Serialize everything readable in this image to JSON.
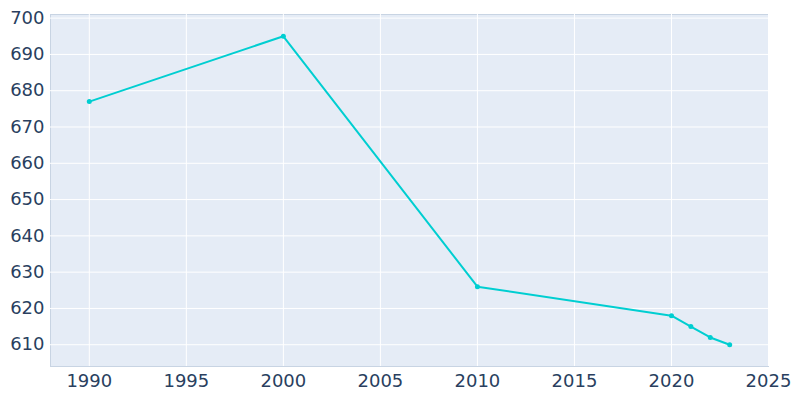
{
  "chart_data": {
    "type": "line",
    "x": [
      1990,
      2000,
      2010,
      2020,
      2021,
      2022,
      2023
    ],
    "values": [
      677,
      695,
      626,
      618,
      615,
      612,
      610
    ],
    "color": "#00ced1",
    "marker": "circle",
    "xlim": [
      1988,
      2025
    ],
    "xticks": [
      1990,
      1995,
      2000,
      2005,
      2010,
      2015,
      2020,
      2025
    ],
    "ylim": [
      604,
      701
    ],
    "yticks": [
      610,
      620,
      630,
      640,
      650,
      660,
      670,
      680,
      690,
      700
    ],
    "grid": true
  }
}
